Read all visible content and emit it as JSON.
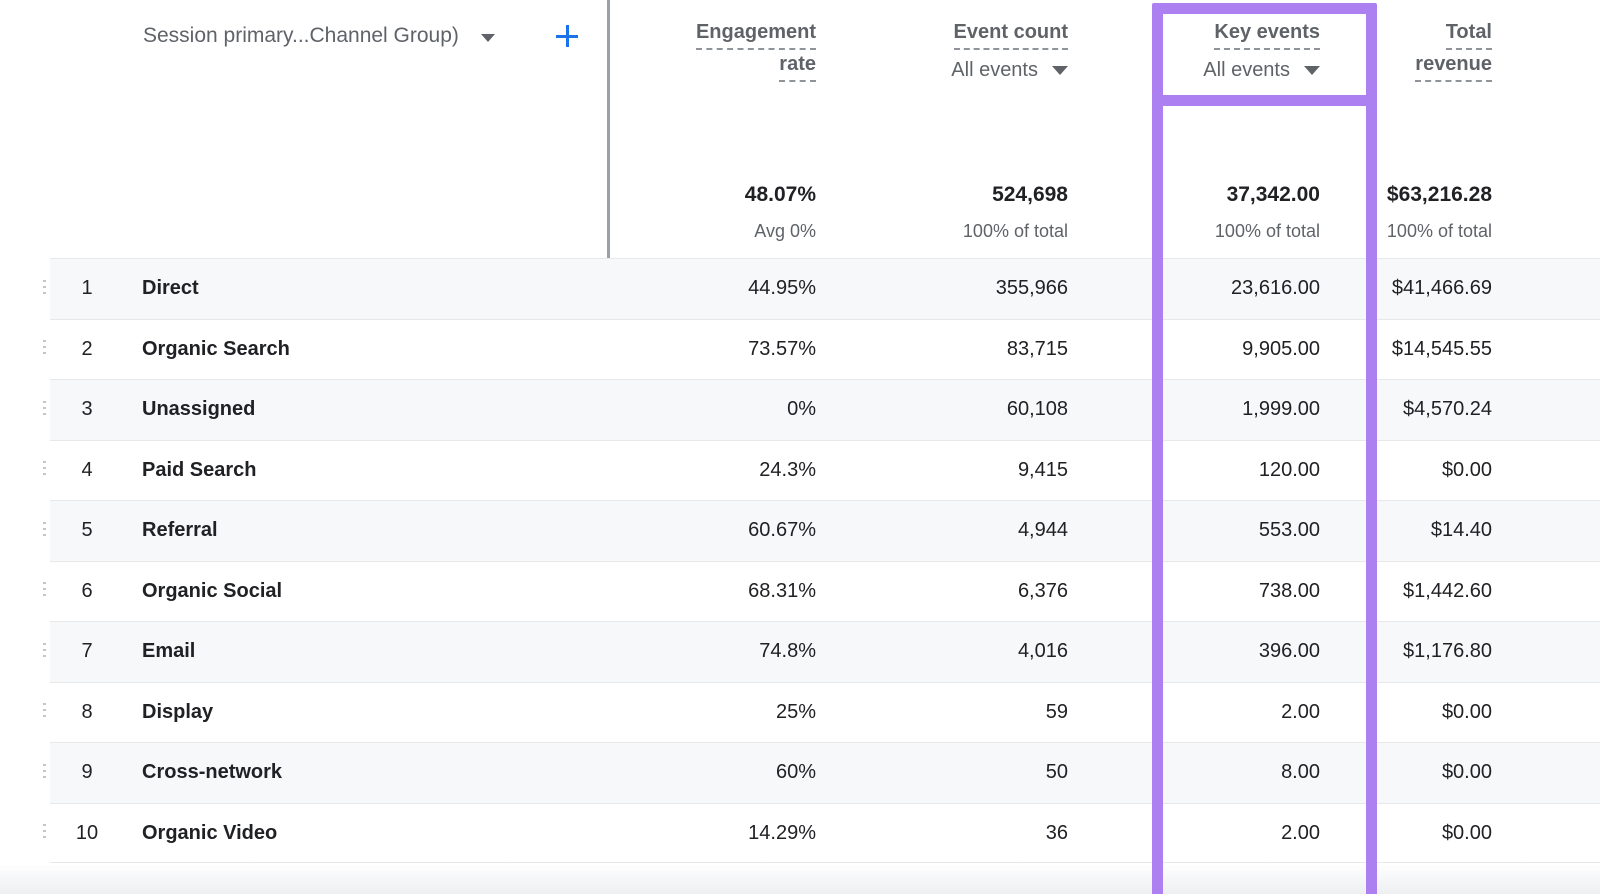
{
  "colors": {
    "highlight_purple": "#ad80f2",
    "accent_blue": "#1a73e8",
    "text_primary": "#202124",
    "text_secondary": "#5f6368",
    "row_alt_background": "#f7f8f9"
  },
  "dimension_header": {
    "label": "Session primary...Channel Group)"
  },
  "columns": {
    "engagement_rate": {
      "title_line1": "Engagement",
      "title_line2": "rate",
      "total": "48.07%",
      "total_sub": "Avg 0%"
    },
    "event_count": {
      "title": "Event count",
      "filter": "All events",
      "total": "524,698",
      "total_sub": "100% of total"
    },
    "key_events": {
      "title": "Key events",
      "filter": "All events",
      "total": "37,342.00",
      "total_sub": "100% of total",
      "highlighted": true
    },
    "total_revenue": {
      "title_line1": "Total",
      "title_line2": "revenue",
      "total": "$63,216.28",
      "total_sub": "100% of total"
    }
  },
  "rows": [
    {
      "index": "1",
      "channel": "Direct",
      "engagement_rate": "44.95%",
      "event_count": "355,966",
      "key_events": "23,616.00",
      "total_revenue": "$41,466.69"
    },
    {
      "index": "2",
      "channel": "Organic Search",
      "engagement_rate": "73.57%",
      "event_count": "83,715",
      "key_events": "9,905.00",
      "total_revenue": "$14,545.55"
    },
    {
      "index": "3",
      "channel": "Unassigned",
      "engagement_rate": "0%",
      "event_count": "60,108",
      "key_events": "1,999.00",
      "total_revenue": "$4,570.24"
    },
    {
      "index": "4",
      "channel": "Paid Search",
      "engagement_rate": "24.3%",
      "event_count": "9,415",
      "key_events": "120.00",
      "total_revenue": "$0.00"
    },
    {
      "index": "5",
      "channel": "Referral",
      "engagement_rate": "60.67%",
      "event_count": "4,944",
      "key_events": "553.00",
      "total_revenue": "$14.40"
    },
    {
      "index": "6",
      "channel": "Organic Social",
      "engagement_rate": "68.31%",
      "event_count": "6,376",
      "key_events": "738.00",
      "total_revenue": "$1,442.60"
    },
    {
      "index": "7",
      "channel": "Email",
      "engagement_rate": "74.8%",
      "event_count": "4,016",
      "key_events": "396.00",
      "total_revenue": "$1,176.80"
    },
    {
      "index": "8",
      "channel": "Display",
      "engagement_rate": "25%",
      "event_count": "59",
      "key_events": "2.00",
      "total_revenue": "$0.00"
    },
    {
      "index": "9",
      "channel": "Cross-network",
      "engagement_rate": "60%",
      "event_count": "50",
      "key_events": "8.00",
      "total_revenue": "$0.00"
    },
    {
      "index": "10",
      "channel": "Organic Video",
      "engagement_rate": "14.29%",
      "event_count": "36",
      "key_events": "2.00",
      "total_revenue": "$0.00"
    }
  ]
}
